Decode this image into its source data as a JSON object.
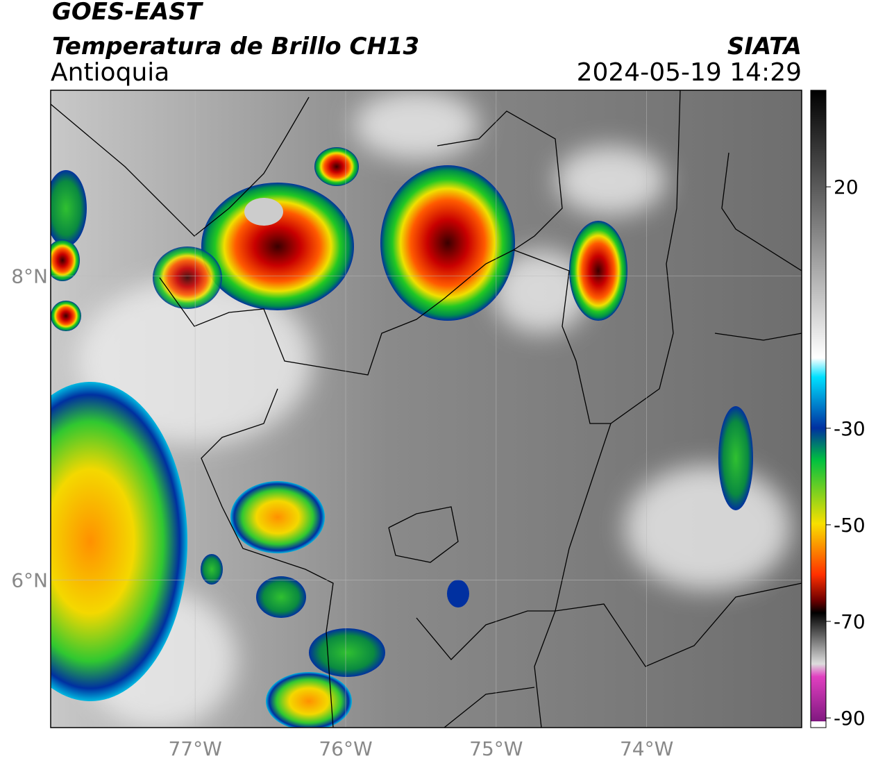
{
  "map": {
    "title": "GOES-EAST",
    "subtitle": "Temperatura de Brillo CH13",
    "source": "SIATA",
    "region": "Antioquia",
    "datetime": "2024-05-19 14:29",
    "xlim": [
      -77.96,
      -72.97
    ],
    "ylim": [
      5.03,
      9.22
    ],
    "xticks": [
      {
        "value": -77,
        "label": "77°W"
      },
      {
        "value": -76,
        "label": "76°W"
      },
      {
        "value": -75,
        "label": "75°W"
      },
      {
        "value": -74,
        "label": "74°W"
      }
    ],
    "yticks": [
      {
        "value": 8,
        "label": "8°N"
      },
      {
        "value": 6,
        "label": "6°N"
      }
    ],
    "grid": true,
    "colorbar": {
      "clim": [
        -92,
        40
      ],
      "ticks": [
        20,
        -30,
        -50,
        -70,
        -90
      ]
    }
  }
}
